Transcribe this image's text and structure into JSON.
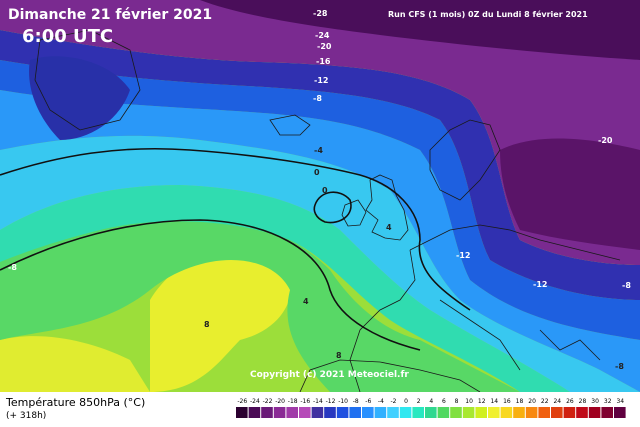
{
  "header": {
    "date": "Dimanche 21 février 2021",
    "time": "6:00 UTC",
    "run": "Run CFS (1 mois) 0Z du Lundi 8 février 2021"
  },
  "footer": {
    "variable": "Température 850hPa (°C)",
    "lead": "(+ 318h)",
    "copyright": "Copyright (c) 2021 Meteociel.fr"
  },
  "contour_labels": [
    "-28",
    "-24",
    "-20",
    "-16",
    "-12",
    "-8",
    "-4",
    "0",
    "0",
    "-20",
    "-12",
    "-12",
    "-8",
    "-8",
    "4",
    "8",
    "8",
    "-8",
    "4"
  ],
  "legend": {
    "ticks": [
      "-26",
      "-24",
      "-22",
      "-20",
      "-18",
      "-16",
      "-14",
      "-12",
      "-10",
      "-8",
      "-6",
      "-4",
      "-2",
      "0",
      "2",
      "4",
      "6",
      "8",
      "10",
      "12",
      "14",
      "16",
      "18",
      "20",
      "22",
      "24",
      "26",
      "28",
      "30",
      "32",
      "34"
    ],
    "colors": [
      "#2b0030",
      "#4a0a55",
      "#6a1a78",
      "#8a2a95",
      "#a03aa8",
      "#b54ab8",
      "#4030a0",
      "#2838c0",
      "#1e50e0",
      "#2070f0",
      "#2890ff",
      "#30b0ff",
      "#40d0ff",
      "#30e8f0",
      "#28e8c0",
      "#30d890",
      "#50d860",
      "#80e040",
      "#a8e830",
      "#d0f020",
      "#f0f030",
      "#f8d820",
      "#f8b010",
      "#f88810",
      "#f06010",
      "#e04010",
      "#d02010",
      "#c00818",
      "#a00020",
      "#800030",
      "#600040"
    ]
  }
}
